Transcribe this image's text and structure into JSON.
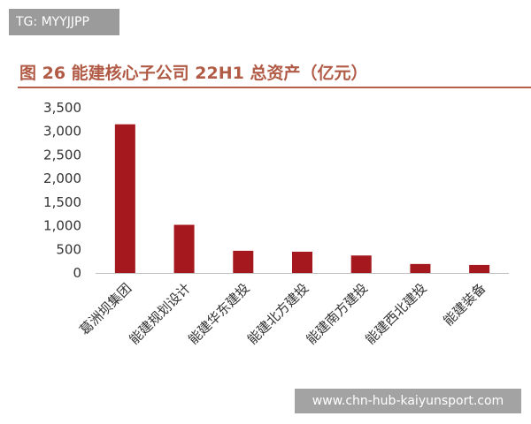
{
  "watermark_top": "TG: MYYJJPP",
  "watermark_bottom": "www.chn-hub-kaiyunsport.com",
  "colors": {
    "bar": "#a5191e",
    "title": "#b15a45",
    "rule": "#b65f4a",
    "axis": "#bfbfbf"
  },
  "chart_data": {
    "type": "bar",
    "title": "图 26  能建核心子公司 22H1 总资产（亿元）",
    "xlabel": "",
    "ylabel": "",
    "ylim": [
      0,
      3500
    ],
    "yticks": [
      "0",
      "500",
      "1,000",
      "1,500",
      "2,000",
      "2,500",
      "3,000",
      "3,500"
    ],
    "grid": false,
    "categories": [
      "葛洲坝集团",
      "能建规划设计",
      "能建华东建投",
      "能建北方建投",
      "能建南方建投",
      "能建西北建投",
      "能建装备"
    ],
    "values": [
      3150,
      1020,
      470,
      450,
      370,
      190,
      170
    ]
  }
}
